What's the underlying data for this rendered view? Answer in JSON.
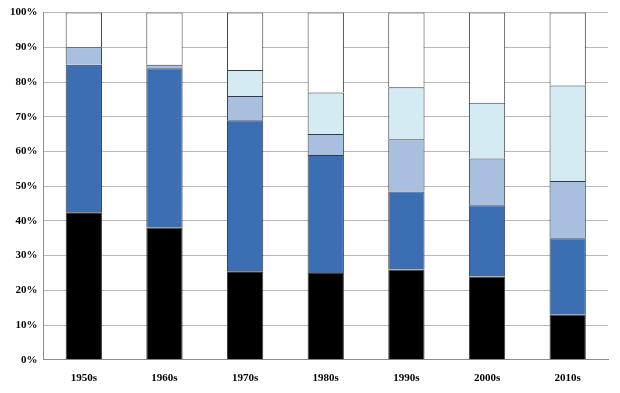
{
  "chart_data": {
    "type": "bar",
    "stacked": true,
    "grid": true,
    "categories": [
      "1950s",
      "1960s",
      "1970s",
      "1980s",
      "1990s",
      "2000s",
      "2010s"
    ],
    "series": [
      {
        "color": "#000000",
        "values": [
          42.5,
          38,
          25.5,
          25,
          26,
          24,
          13
        ]
      },
      {
        "color": "#3c6eb4",
        "values": [
          42.5,
          46,
          43.5,
          34,
          22.5,
          20.5,
          22
        ]
      },
      {
        "color": "#a8bfe0",
        "values": [
          5,
          1,
          7,
          6,
          15,
          13.5,
          16.5
        ]
      },
      {
        "color": "#d5ebf3",
        "values": [
          0,
          0,
          7.5,
          12,
          15,
          16,
          27.5
        ]
      },
      {
        "color": "#ffffff",
        "values": [
          10,
          15,
          16.5,
          23,
          21.5,
          26,
          21
        ]
      }
    ],
    "ylim": [
      0,
      100
    ],
    "yticks": [
      {
        "value": 0,
        "label": "0%"
      },
      {
        "value": 10,
        "label": "10%"
      },
      {
        "value": 20,
        "label": "20%"
      },
      {
        "value": 30,
        "label": "30%"
      },
      {
        "value": 40,
        "label": "40%"
      },
      {
        "value": 50,
        "label": "50%"
      },
      {
        "value": 60,
        "label": "60%"
      },
      {
        "value": 70,
        "label": "70%"
      },
      {
        "value": 80,
        "label": "80%"
      },
      {
        "value": 90,
        "label": "90%"
      },
      {
        "value": 100,
        "label": "100%"
      }
    ]
  }
}
